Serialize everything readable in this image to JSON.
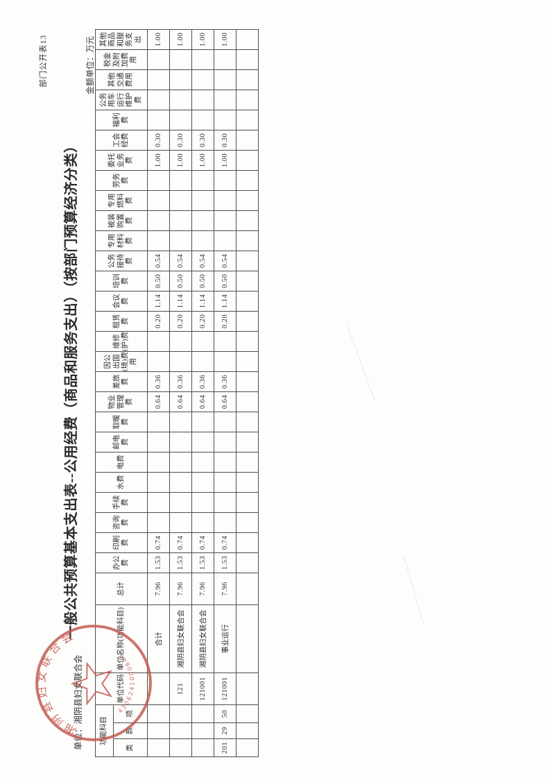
{
  "header": {
    "form_code": "部门公开表13",
    "title": "一般公共预算基本支出表--公用经费（商品和服务支出）（按部门预算经济分类）",
    "unit_line": "单位：湘阴县妇女联合会",
    "amount_unit": "金额单位：万元"
  },
  "seal": {
    "org": "湘阴县妇女联合会",
    "code": "4306241000644"
  },
  "colors": {
    "seal_red": "#c2574e",
    "ink": "#2e2e2e",
    "grid_line": "#4d4d4d"
  },
  "table": {
    "function_group_header": "功能科目",
    "function_sub_headers": [
      "类",
      "款",
      "项"
    ],
    "unit_code_header": "单位代码",
    "unit_name_header": "单位名称(功能科目)",
    "total_header": "总计",
    "expense_headers": [
      "办公费",
      "印刷费",
      "咨询费",
      "手续费",
      "水费",
      "电费",
      "邮电费",
      "取暖费",
      "物业管理费",
      "差旅费",
      "因公出国(境)费用",
      "维修(护)费",
      "租赁费",
      "会议费",
      "培训费",
      "公务接待费",
      "专用材料费",
      "被装购置费",
      "专用燃料费",
      "劳务费",
      "委托业务费",
      "工会经费",
      "福利费",
      "公务用车运行维护费",
      "其他交通费用",
      "税金及附加费用",
      "其他商品和服务支出"
    ],
    "rows": [
      {
        "func": [
          "",
          "",
          ""
        ],
        "unit_code": "",
        "unit_name": "合计",
        "total": "7.96",
        "expenses": [
          "1.53",
          "0.74",
          "",
          "",
          "",
          "",
          "",
          "",
          "0.64",
          "0.36",
          "",
          "",
          "0.20",
          "1.14",
          "0.50",
          "0.54",
          "",
          "",
          "",
          "",
          "1.00",
          "0.30",
          "",
          "",
          "",
          "",
          "1.00"
        ]
      },
      {
        "func": [
          "",
          "",
          ""
        ],
        "unit_code": "121",
        "unit_name": "湘阴县妇女联合会",
        "total": "7.96",
        "expenses": [
          "1.53",
          "0.74",
          "",
          "",
          "",
          "",
          "",
          "",
          "0.64",
          "0.36",
          "",
          "",
          "0.20",
          "1.14",
          "0.50",
          "0.54",
          "",
          "",
          "",
          "",
          "1.00",
          "0.30",
          "",
          "",
          "",
          "",
          "1.00"
        ]
      },
      {
        "func": [
          "",
          "",
          ""
        ],
        "unit_code": "121001",
        "unit_name": "湘阴县妇女联合会",
        "total": "7.96",
        "expenses": [
          "1.53",
          "0.74",
          "",
          "",
          "",
          "",
          "",
          "",
          "0.64",
          "0.36",
          "",
          "",
          "0.20",
          "1.14",
          "0.50",
          "0.54",
          "",
          "",
          "",
          "",
          "1.00",
          "0.30",
          "",
          "",
          "",
          "",
          "1.00"
        ]
      },
      {
        "func": [
          "201",
          "29",
          "50"
        ],
        "unit_code": "121001",
        "unit_name": "事业运行",
        "total": "7.96",
        "expenses": [
          "1.53",
          "0.74",
          "",
          "",
          "",
          "",
          "",
          "",
          "0.64",
          "0.36",
          "",
          "",
          "0.20",
          "1.14",
          "0.50",
          "0.54",
          "",
          "",
          "",
          "",
          "1.00",
          "0.30",
          "",
          "",
          "",
          "",
          "1.00"
        ]
      },
      {
        "func": [
          "",
          "",
          ""
        ],
        "unit_code": "",
        "unit_name": "",
        "total": "",
        "expenses": [
          "",
          "",
          "",
          "",
          "",
          "",
          "",
          "",
          "",
          "",
          "",
          "",
          "",
          "",
          "",
          "",
          "",
          "",
          "",
          "",
          "",
          "",
          "",
          "",
          "",
          "",
          ""
        ]
      }
    ]
  }
}
